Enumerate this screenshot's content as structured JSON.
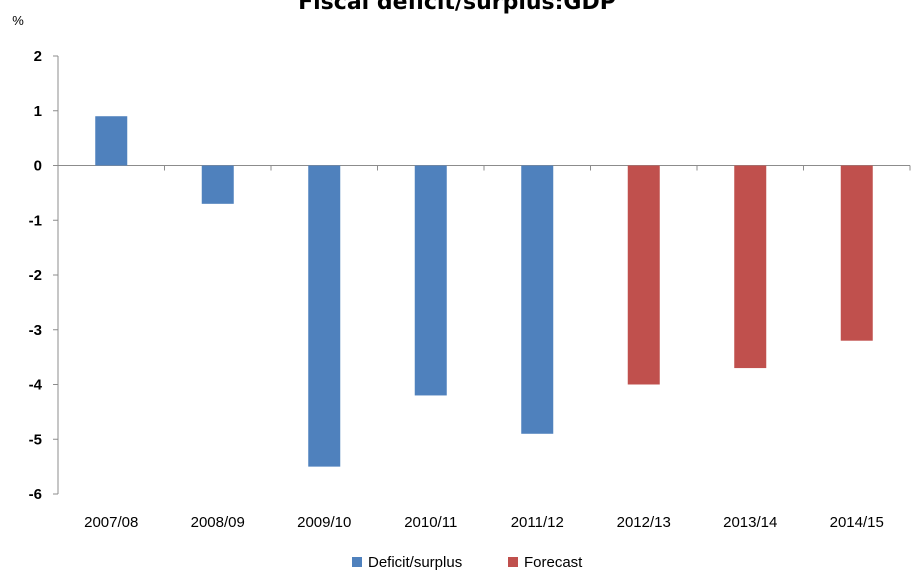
{
  "chart_data": {
    "type": "bar",
    "title": "Fiscal deficit/surplus:GDP",
    "ylabel": "%",
    "xlabel": "",
    "ylim": [
      -6,
      2
    ],
    "yticks": [
      2,
      1,
      0,
      -1,
      -2,
      -3,
      -4,
      -5,
      -6
    ],
    "grid": false,
    "legend_position": "bottom",
    "categories": [
      "2007/08",
      "2008/09",
      "2009/10",
      "2010/11",
      "2011/12",
      "2012/13",
      "2013/14",
      "2014/15"
    ],
    "series": [
      {
        "name": "Deficit/surplus",
        "color": "#4f81bd",
        "values": [
          0.9,
          -0.7,
          -5.5,
          -4.2,
          -4.9,
          null,
          null,
          null
        ]
      },
      {
        "name": "Forecast",
        "color": "#c0504d",
        "values": [
          null,
          null,
          null,
          null,
          null,
          -4.0,
          -3.7,
          -3.2
        ]
      }
    ]
  }
}
